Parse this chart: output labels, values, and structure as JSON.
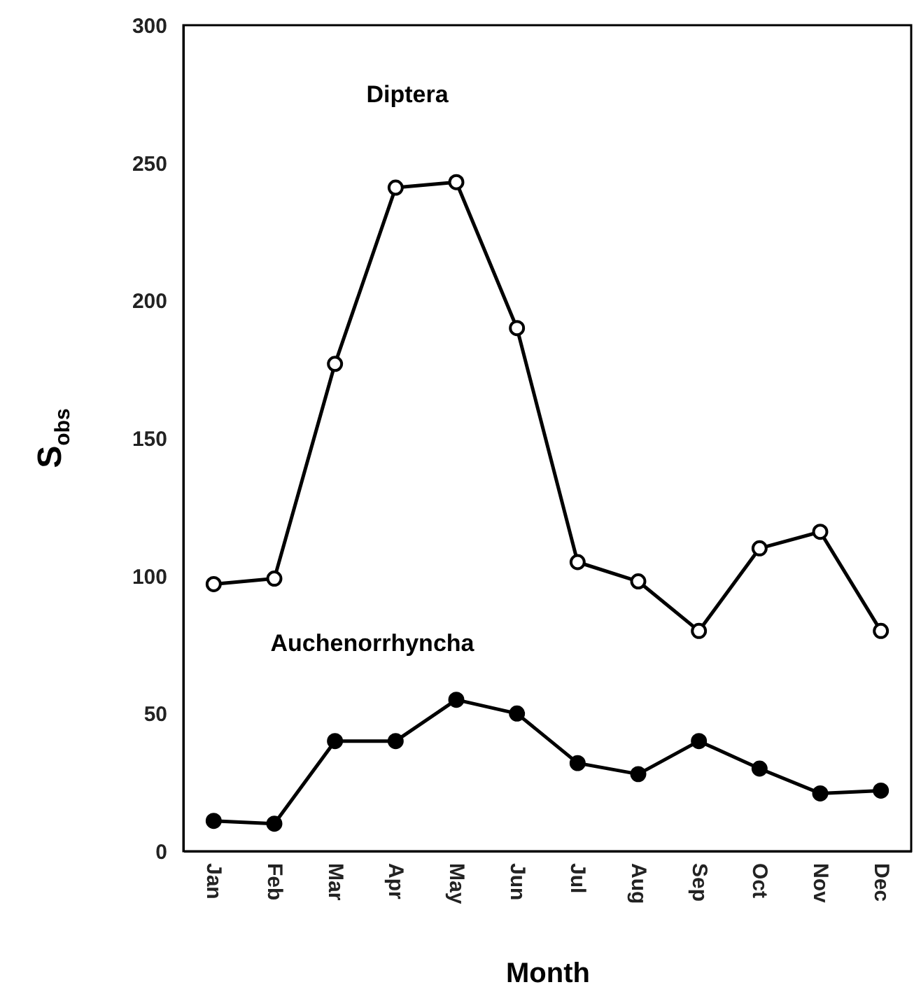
{
  "chart_data": {
    "type": "line",
    "xlabel": "Month",
    "ylabel": "S$_{obs}$",
    "categories": [
      "Jan",
      "Feb",
      "Mar",
      "Apr",
      "May",
      "Jun",
      "Jul",
      "Aug",
      "Sep",
      "Oct",
      "Nov",
      "Dec"
    ],
    "series": [
      {
        "name": "Diptera",
        "color": "#000000",
        "values": [
          97,
          99,
          177,
          241,
          243,
          190,
          105,
          98,
          80,
          110,
          116,
          80
        ]
      },
      {
        "name": "Auchenorrhyncha",
        "color": "#000000",
        "values": [
          11,
          10,
          40,
          40,
          55,
          50,
          32,
          28,
          40,
          30,
          21,
          22
        ]
      }
    ],
    "ylim": [
      0,
      300
    ],
    "yticks": [
      0,
      50,
      100,
      150,
      200,
      250,
      300
    ],
    "grid": false,
    "marker": "circle",
    "line_style": "solid"
  }
}
